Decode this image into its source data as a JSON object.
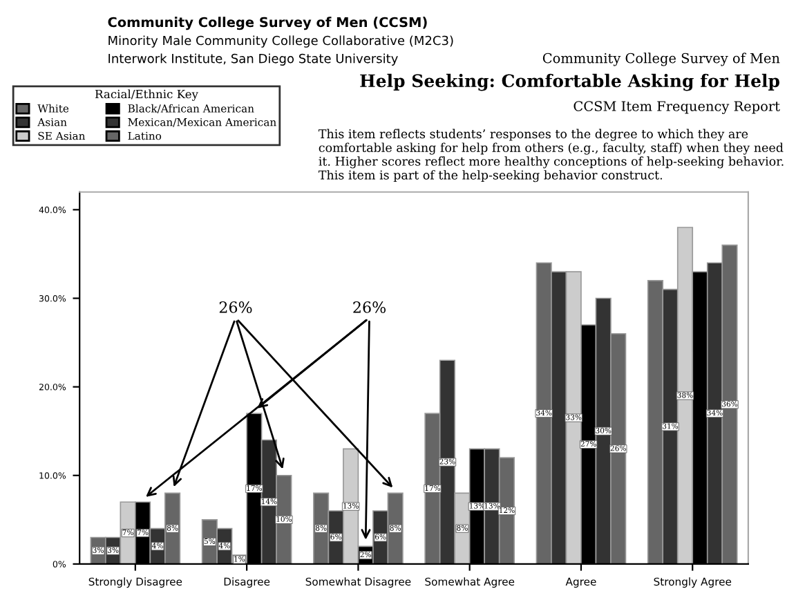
{
  "chart_data": {
    "type": "bar",
    "title": "Help Seeking: Comfortable Asking for Help",
    "subtitle": "CCSM Item Frequency Report",
    "annotations": [
      "Community College Survey of Men (CCSM)",
      "Minority Male Community College Collaborative (M2C3)",
      "Interwork Institute, San Diego State University",
      "Community College Survey of Men",
      "This item reflects students’ responses to the degree to which they are comfortable asking for help from others (e.g., faculty, staff) when they need it. Higher scores reflect more healthy conceptions of help-seeking behavior. This item is part of the help-seeking behavior construct.",
      "26%",
      "26%"
    ],
    "legend_title": "Racial/Ethnic Key",
    "legend": "top left",
    "grid": false,
    "categories": [
      "Strongly Disagree",
      "Disagree",
      "Somewhat Disagree",
      "Somewhat Agree",
      "Agree",
      "Strongly Agree"
    ],
    "ylim": [
      0,
      42
    ],
    "yticks": [
      {
        "value": 0,
        "label": "0%"
      },
      {
        "value": 10,
        "label": "10.0%"
      },
      {
        "value": 20,
        "label": "20.0%"
      },
      {
        "value": 30,
        "label": "30.0%"
      },
      {
        "value": 40,
        "label": "40.0%"
      }
    ],
    "series": [
      {
        "name": "White",
        "color": "#666666",
        "values": [
          3,
          5,
          8,
          17,
          34,
          32
        ],
        "value_labels": [
          "3%",
          "5%",
          "8%",
          "17%",
          "34%",
          null
        ]
      },
      {
        "name": "Asian",
        "color": "#333333",
        "values": [
          3,
          4,
          6,
          23,
          33,
          31
        ],
        "value_labels": [
          "3%",
          "4%",
          "6%",
          "23%",
          null,
          "31%"
        ]
      },
      {
        "name": "SE Asian",
        "color": "#cccccc",
        "values": [
          7,
          1,
          13,
          8,
          33,
          38
        ],
        "value_labels": [
          "7%",
          "1%",
          "13%",
          "8%",
          "33%",
          "38%"
        ]
      },
      {
        "name": "Black/African American",
        "color": "#000000",
        "values": [
          7,
          17,
          2,
          13,
          27,
          33
        ],
        "value_labels": [
          "7%",
          "17%",
          "2%",
          "13%",
          "27%",
          null
        ]
      },
      {
        "name": "Mexican/Mexican American",
        "color": "#333333",
        "values": [
          4,
          14,
          6,
          13,
          30,
          34
        ],
        "value_labels": [
          "4%",
          "14%",
          "6%",
          "13%",
          "30%",
          "34%"
        ]
      },
      {
        "name": "Latino",
        "color": "#666666",
        "values": [
          8,
          10,
          8,
          12,
          26,
          36
        ],
        "value_labels": [
          "8%",
          "10%",
          "8%",
          "12%",
          "26%",
          "36%"
        ]
      }
    ]
  }
}
